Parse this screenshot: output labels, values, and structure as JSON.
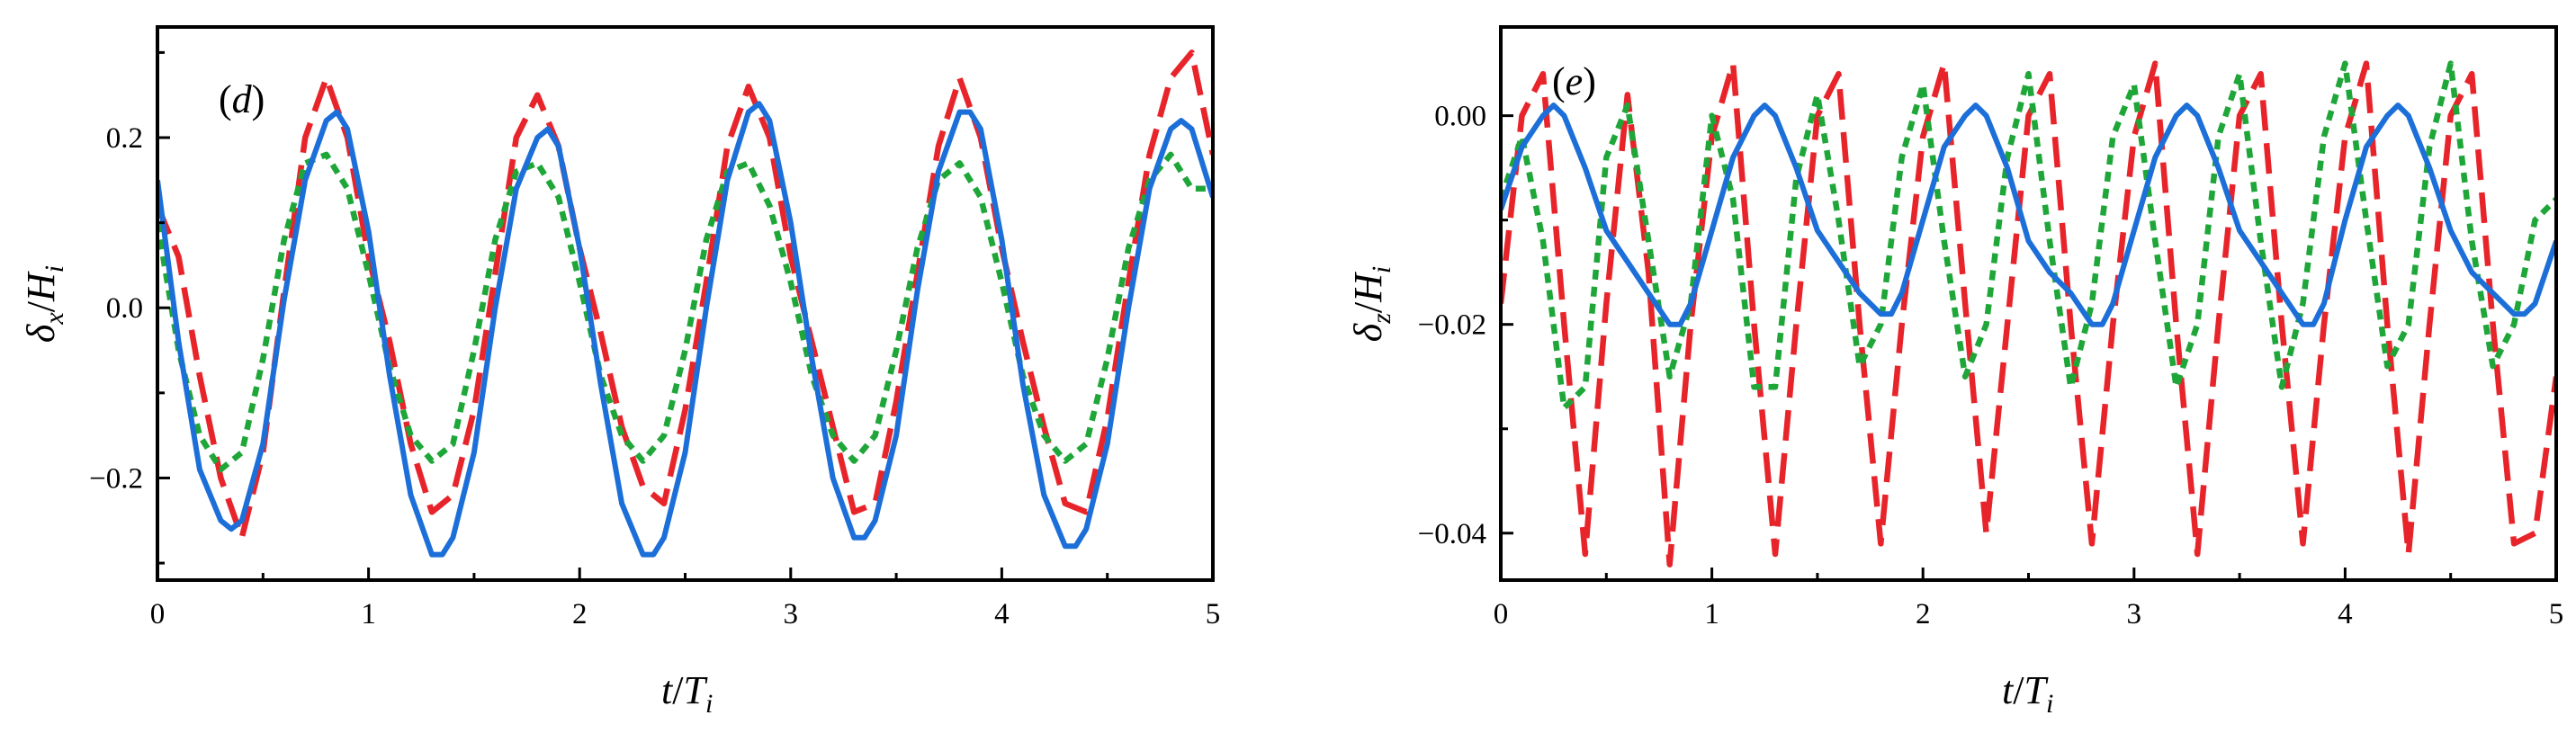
{
  "chart_data": [
    {
      "type": "line",
      "panel_label": "(d)",
      "panel_letter": "d",
      "xlabel": {
        "main": "t",
        "sep": "/",
        "var": "T",
        "sub": "i"
      },
      "ylabel": {
        "main": "δ",
        "sub1": "x",
        "sep": "/",
        "var": "H",
        "sub2": "i"
      },
      "xlim": [
        0,
        5
      ],
      "ylim": [
        -0.32,
        0.33
      ],
      "xticks": [
        0,
        1,
        2,
        3,
        4,
        5
      ],
      "xtick_labels": [
        "0",
        "1",
        "2",
        "3",
        "4",
        "5"
      ],
      "yticks": [
        -0.2,
        0.0,
        0.2
      ],
      "ytick_labels": [
        "−0.2",
        "0.0",
        "0.2"
      ],
      "series": [
        {
          "name": "dashed-red",
          "color": "#e8242b",
          "style": "long-dash",
          "x": [
            0,
            0.1,
            0.2,
            0.3,
            0.4,
            0.5,
            0.6,
            0.7,
            0.8,
            0.9,
            1.0,
            1.1,
            1.2,
            1.3,
            1.4,
            1.5,
            1.6,
            1.7,
            1.8,
            1.9,
            2.0,
            2.1,
            2.2,
            2.3,
            2.4,
            2.5,
            2.6,
            2.7,
            2.8,
            2.9,
            3.0,
            3.1,
            3.2,
            3.3,
            3.4,
            3.5,
            3.6,
            3.7,
            3.8,
            3.9,
            4.0,
            4.1,
            4.2,
            4.3,
            4.4,
            4.5,
            4.6,
            4.7,
            4.8,
            4.9,
            5.0
          ],
          "y": [
            0.12,
            0.06,
            -0.08,
            -0.2,
            -0.27,
            -0.17,
            0.02,
            0.2,
            0.27,
            0.2,
            0.06,
            -0.04,
            -0.16,
            -0.24,
            -0.22,
            -0.12,
            0.04,
            0.2,
            0.25,
            0.19,
            0.07,
            -0.03,
            -0.14,
            -0.21,
            -0.23,
            -0.12,
            0.03,
            0.19,
            0.26,
            0.2,
            0.06,
            -0.04,
            -0.14,
            -0.24,
            -0.23,
            -0.11,
            0.04,
            0.19,
            0.27,
            0.2,
            0.07,
            -0.04,
            -0.14,
            -0.23,
            -0.24,
            -0.13,
            0.03,
            0.18,
            0.27,
            0.3,
            0.18
          ]
        },
        {
          "name": "dotted-green",
          "color": "#1fa639",
          "style": "short-dash",
          "x": [
            0,
            0.1,
            0.2,
            0.3,
            0.4,
            0.5,
            0.6,
            0.7,
            0.8,
            0.9,
            1.0,
            1.1,
            1.2,
            1.3,
            1.4,
            1.5,
            1.6,
            1.7,
            1.8,
            1.9,
            2.0,
            2.1,
            2.2,
            2.3,
            2.4,
            2.5,
            2.6,
            2.7,
            2.8,
            2.9,
            3.0,
            3.1,
            3.2,
            3.3,
            3.4,
            3.5,
            3.6,
            3.7,
            3.8,
            3.9,
            4.0,
            4.1,
            4.2,
            4.3,
            4.4,
            4.5,
            4.6,
            4.7,
            4.8,
            4.9,
            5.0
          ],
          "y": [
            0.1,
            -0.05,
            -0.15,
            -0.19,
            -0.17,
            -0.06,
            0.08,
            0.17,
            0.18,
            0.14,
            0.04,
            -0.07,
            -0.15,
            -0.18,
            -0.16,
            -0.05,
            0.08,
            0.16,
            0.17,
            0.13,
            0.03,
            -0.08,
            -0.15,
            -0.18,
            -0.15,
            -0.05,
            0.08,
            0.16,
            0.17,
            0.12,
            0.03,
            -0.08,
            -0.15,
            -0.18,
            -0.15,
            -0.05,
            0.07,
            0.15,
            0.17,
            0.13,
            0.03,
            -0.08,
            -0.15,
            -0.18,
            -0.16,
            -0.06,
            0.07,
            0.15,
            0.18,
            0.14,
            0.14
          ]
        },
        {
          "name": "solid-blue",
          "color": "#1c6fd8",
          "style": "solid",
          "x": [
            0,
            0.1,
            0.2,
            0.3,
            0.35,
            0.4,
            0.5,
            0.6,
            0.7,
            0.8,
            0.85,
            0.9,
            1.0,
            1.1,
            1.2,
            1.3,
            1.35,
            1.4,
            1.5,
            1.6,
            1.7,
            1.8,
            1.85,
            1.9,
            2.0,
            2.1,
            2.2,
            2.3,
            2.35,
            2.4,
            2.5,
            2.6,
            2.7,
            2.8,
            2.85,
            2.9,
            3.0,
            3.1,
            3.2,
            3.3,
            3.35,
            3.4,
            3.5,
            3.6,
            3.7,
            3.8,
            3.85,
            3.9,
            4.0,
            4.1,
            4.2,
            4.3,
            4.35,
            4.4,
            4.5,
            4.6,
            4.7,
            4.8,
            4.85,
            4.9,
            5.0
          ],
          "y": [
            0.15,
            -0.04,
            -0.19,
            -0.25,
            -0.26,
            -0.25,
            -0.16,
            0.01,
            0.15,
            0.22,
            0.23,
            0.21,
            0.09,
            -0.08,
            -0.22,
            -0.29,
            -0.29,
            -0.27,
            -0.17,
            0.0,
            0.14,
            0.2,
            0.21,
            0.19,
            0.07,
            -0.09,
            -0.23,
            -0.29,
            -0.29,
            -0.27,
            -0.17,
            0.0,
            0.15,
            0.23,
            0.24,
            0.22,
            0.1,
            -0.06,
            -0.2,
            -0.27,
            -0.27,
            -0.25,
            -0.15,
            0.02,
            0.16,
            0.23,
            0.23,
            0.21,
            0.08,
            -0.09,
            -0.22,
            -0.28,
            -0.28,
            -0.26,
            -0.16,
            0.0,
            0.14,
            0.21,
            0.22,
            0.21,
            0.13
          ]
        }
      ]
    },
    {
      "type": "line",
      "panel_label": "(e)",
      "panel_letter": "e",
      "xlabel": {
        "main": "t",
        "sep": "/",
        "var": "T",
        "sub": "i"
      },
      "ylabel": {
        "main": "δ",
        "sub1": "z",
        "sep": "/",
        "var": "H",
        "sub2": "i"
      },
      "xlim": [
        0,
        5
      ],
      "ylim": [
        -0.0445,
        0.0085
      ],
      "xticks": [
        0,
        1,
        2,
        3,
        4,
        5
      ],
      "xtick_labels": [
        "0",
        "1",
        "2",
        "3",
        "4",
        "5"
      ],
      "yticks": [
        -0.04,
        -0.02,
        0.0
      ],
      "ytick_labels": [
        "−0.04",
        "−0.02",
        "0.00"
      ],
      "series": [
        {
          "name": "dashed-red",
          "color": "#e8242b",
          "style": "long-dash",
          "x": [
            0,
            0.1,
            0.2,
            0.3,
            0.4,
            0.5,
            0.6,
            0.7,
            0.8,
            0.9,
            1.0,
            1.1,
            1.2,
            1.3,
            1.4,
            1.5,
            1.6,
            1.7,
            1.8,
            1.9,
            2.0,
            2.1,
            2.2,
            2.3,
            2.4,
            2.5,
            2.6,
            2.7,
            2.8,
            2.9,
            3.0,
            3.1,
            3.2,
            3.3,
            3.4,
            3.5,
            3.6,
            3.7,
            3.8,
            3.9,
            4.0,
            4.1,
            4.2,
            4.3,
            4.4,
            4.5,
            4.6,
            4.7,
            4.8,
            4.9,
            5.0
          ],
          "y": [
            -0.018,
            0.0,
            0.004,
            -0.02,
            -0.042,
            -0.018,
            0.002,
            -0.015,
            -0.043,
            -0.02,
            -0.002,
            0.005,
            -0.02,
            -0.042,
            -0.02,
            0.0,
            0.004,
            -0.02,
            -0.041,
            -0.02,
            -0.002,
            0.005,
            -0.018,
            -0.04,
            -0.02,
            0.0,
            0.004,
            -0.02,
            -0.041,
            -0.02,
            -0.002,
            0.005,
            -0.02,
            -0.042,
            -0.02,
            0.0,
            0.004,
            -0.02,
            -0.041,
            -0.02,
            -0.002,
            0.005,
            -0.02,
            -0.042,
            -0.02,
            0.0,
            0.004,
            -0.02,
            -0.041,
            -0.04,
            -0.025
          ]
        },
        {
          "name": "dotted-green",
          "color": "#1fa639",
          "style": "short-dash",
          "x": [
            0,
            0.1,
            0.2,
            0.3,
            0.4,
            0.5,
            0.6,
            0.7,
            0.8,
            0.9,
            1.0,
            1.1,
            1.2,
            1.3,
            1.4,
            1.5,
            1.6,
            1.7,
            1.8,
            1.9,
            2.0,
            2.1,
            2.2,
            2.3,
            2.4,
            2.5,
            2.6,
            2.7,
            2.8,
            2.9,
            3.0,
            3.1,
            3.2,
            3.3,
            3.4,
            3.5,
            3.6,
            3.7,
            3.8,
            3.9,
            4.0,
            4.1,
            4.2,
            4.3,
            4.4,
            4.5,
            4.6,
            4.7,
            4.8,
            4.9,
            5.0
          ],
          "y": [
            -0.008,
            -0.002,
            -0.012,
            -0.028,
            -0.026,
            -0.004,
            0.001,
            -0.012,
            -0.025,
            -0.018,
            0.0,
            -0.008,
            -0.026,
            -0.026,
            -0.006,
            0.002,
            -0.01,
            -0.024,
            -0.02,
            -0.004,
            0.003,
            -0.012,
            -0.025,
            -0.02,
            -0.004,
            0.004,
            -0.012,
            -0.026,
            -0.018,
            -0.002,
            0.003,
            -0.012,
            -0.026,
            -0.02,
            -0.002,
            0.004,
            -0.012,
            -0.026,
            -0.018,
            -0.002,
            0.005,
            -0.01,
            -0.024,
            -0.02,
            -0.003,
            0.005,
            -0.012,
            -0.024,
            -0.02,
            -0.01,
            -0.008
          ]
        },
        {
          "name": "solid-blue",
          "color": "#1c6fd8",
          "style": "solid",
          "x": [
            0,
            0.1,
            0.2,
            0.25,
            0.3,
            0.4,
            0.5,
            0.6,
            0.7,
            0.8,
            0.85,
            0.9,
            1.0,
            1.1,
            1.2,
            1.25,
            1.3,
            1.4,
            1.5,
            1.6,
            1.7,
            1.8,
            1.85,
            1.9,
            2.0,
            2.1,
            2.2,
            2.25,
            2.3,
            2.4,
            2.5,
            2.6,
            2.7,
            2.8,
            2.85,
            2.9,
            3.0,
            3.1,
            3.2,
            3.25,
            3.3,
            3.4,
            3.5,
            3.6,
            3.7,
            3.8,
            3.85,
            3.9,
            4.0,
            4.1,
            4.2,
            4.25,
            4.3,
            4.4,
            4.5,
            4.6,
            4.7,
            4.8,
            4.85,
            4.9,
            5.0
          ],
          "y": [
            -0.009,
            -0.003,
            0.0,
            0.001,
            0.0,
            -0.005,
            -0.011,
            -0.014,
            -0.017,
            -0.02,
            -0.02,
            -0.018,
            -0.011,
            -0.004,
            0.0,
            0.001,
            0.0,
            -0.005,
            -0.011,
            -0.014,
            -0.017,
            -0.019,
            -0.019,
            -0.017,
            -0.01,
            -0.003,
            0.0,
            0.001,
            0.0,
            -0.005,
            -0.012,
            -0.015,
            -0.017,
            -0.02,
            -0.02,
            -0.018,
            -0.011,
            -0.004,
            0.0,
            0.001,
            0.0,
            -0.005,
            -0.011,
            -0.014,
            -0.017,
            -0.02,
            -0.02,
            -0.018,
            -0.01,
            -0.003,
            0.0,
            0.001,
            0.0,
            -0.005,
            -0.011,
            -0.015,
            -0.017,
            -0.019,
            -0.019,
            -0.018,
            -0.012
          ]
        }
      ]
    }
  ]
}
